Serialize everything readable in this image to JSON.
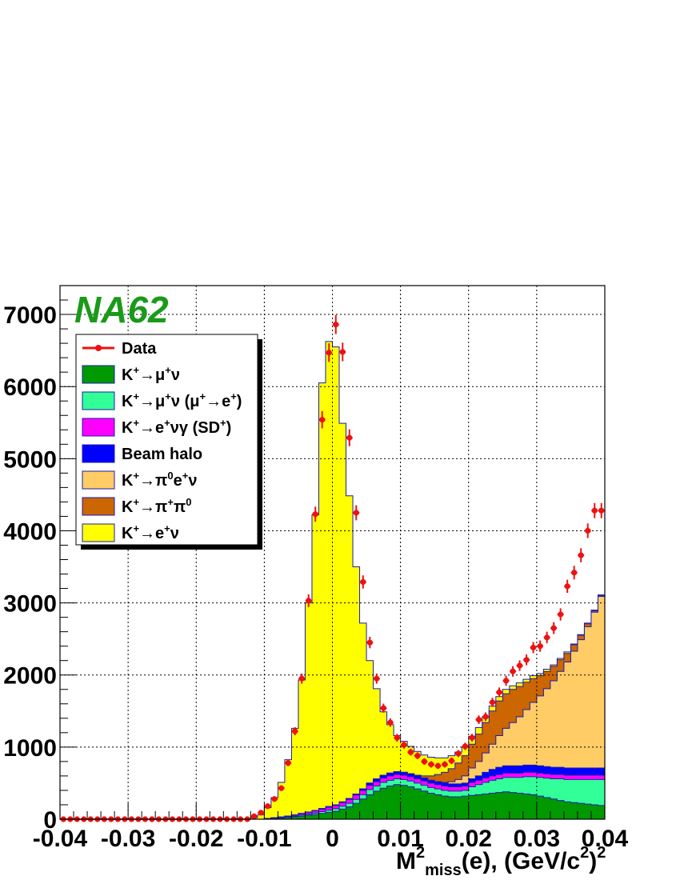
{
  "chart_data": {
    "type": "histogram",
    "watermark": "NA62",
    "xlabel": {
      "main": "M",
      "sup": "2",
      "sub": "miss",
      "rest": "(e), (GeV/c",
      "sup2": "2",
      "close": ")",
      "sup3": "2"
    },
    "xlim": [
      -0.04,
      0.04
    ],
    "ylim": [
      0,
      7400
    ],
    "bin_width": 0.001,
    "x_ticks": [
      -0.04,
      -0.03,
      -0.02,
      -0.01,
      0,
      0.01,
      0.02,
      0.03,
      0.04
    ],
    "x_tick_labels": [
      "-0.04",
      "-0.03",
      "-0.02",
      "-0.01",
      "0",
      "0.01",
      "0.02",
      "0.03",
      "0.04"
    ],
    "y_ticks": [
      0,
      1000,
      2000,
      3000,
      4000,
      5000,
      6000,
      7000
    ],
    "y_tick_labels": [
      "0",
      "1000",
      "2000",
      "3000",
      "4000",
      "5000",
      "6000",
      "7000"
    ],
    "grid": true,
    "legend_position": "top-left",
    "colors": {
      "data": "#ee1111",
      "kmunu": "#009900",
      "kmunu_mue": "#33ff99",
      "kenug": "#ff00ff",
      "halo": "#0000ff",
      "ke3": "#ffcc66",
      "k2pi": "#cc6600",
      "ke2": "#ffff00",
      "outline": "#1b1bb0"
    },
    "legend": [
      {
        "key": "data",
        "type": "marker",
        "parts": [
          {
            "t": "Data"
          }
        ]
      },
      {
        "key": "kmunu",
        "type": "box",
        "parts": [
          {
            "t": "K"
          },
          {
            "t": "+",
            "s": "sup"
          },
          {
            "t": "→μ"
          },
          {
            "t": "+",
            "s": "sup"
          },
          {
            "t": "ν"
          }
        ]
      },
      {
        "key": "kmunu_mue",
        "type": "box",
        "parts": [
          {
            "t": "K"
          },
          {
            "t": "+",
            "s": "sup"
          },
          {
            "t": "→μ"
          },
          {
            "t": "+",
            "s": "sup"
          },
          {
            "t": "ν (μ"
          },
          {
            "t": "+",
            "s": "sup"
          },
          {
            "t": "→e"
          },
          {
            "t": "+",
            "s": "sup"
          },
          {
            "t": ")"
          }
        ]
      },
      {
        "key": "kenug",
        "type": "box",
        "parts": [
          {
            "t": "K"
          },
          {
            "t": "+",
            "s": "sup"
          },
          {
            "t": "→e"
          },
          {
            "t": "+",
            "s": "sup"
          },
          {
            "t": "νγ (SD"
          },
          {
            "t": "+",
            "s": "sup"
          },
          {
            "t": ")"
          }
        ]
      },
      {
        "key": "halo",
        "type": "box",
        "parts": [
          {
            "t": "Beam halo"
          }
        ]
      },
      {
        "key": "ke3",
        "type": "box",
        "parts": [
          {
            "t": "K"
          },
          {
            "t": "+",
            "s": "sup"
          },
          {
            "t": "→π"
          },
          {
            "t": "0",
            "s": "sup"
          },
          {
            "t": "e"
          },
          {
            "t": "+",
            "s": "sup"
          },
          {
            "t": "ν"
          }
        ]
      },
      {
        "key": "k2pi",
        "type": "box",
        "parts": [
          {
            "t": "K"
          },
          {
            "t": "+",
            "s": "sup"
          },
          {
            "t": "→π"
          },
          {
            "t": "+",
            "s": "sup"
          },
          {
            "t": "π"
          },
          {
            "t": "0",
            "s": "sup"
          }
        ]
      },
      {
        "key": "ke2",
        "type": "box",
        "parts": [
          {
            "t": "K"
          },
          {
            "t": "+",
            "s": "sup"
          },
          {
            "t": "→e"
          },
          {
            "t": "+",
            "s": "sup"
          },
          {
            "t": "ν"
          }
        ]
      }
    ],
    "stack_order": [
      "kmunu",
      "kmunu_mue",
      "kenug",
      "halo",
      "ke3",
      "k2pi",
      "ke2"
    ],
    "bin_centers": [
      -0.0395,
      -0.0385,
      -0.0375,
      -0.0365,
      -0.0355,
      -0.0345,
      -0.0335,
      -0.0325,
      -0.0315,
      -0.0305,
      -0.0295,
      -0.0285,
      -0.0275,
      -0.0265,
      -0.0255,
      -0.0245,
      -0.0235,
      -0.0225,
      -0.0215,
      -0.0205,
      -0.0195,
      -0.0185,
      -0.0175,
      -0.0165,
      -0.0155,
      -0.0145,
      -0.0135,
      -0.0125,
      -0.0115,
      -0.0105,
      -0.0095,
      -0.0085,
      -0.0075,
      -0.0065,
      -0.0055,
      -0.0045,
      -0.0035,
      -0.0025,
      -0.0015,
      -0.0005,
      0.0005,
      0.0015,
      0.0025,
      0.0035,
      0.0045,
      0.0055,
      0.0065,
      0.0075,
      0.0085,
      0.0095,
      0.0105,
      0.0115,
      0.0125,
      0.0135,
      0.0145,
      0.0155,
      0.0165,
      0.0175,
      0.0185,
      0.0195,
      0.0205,
      0.0215,
      0.0225,
      0.0235,
      0.0245,
      0.0255,
      0.0265,
      0.0275,
      0.0285,
      0.0295,
      0.0305,
      0.0315,
      0.0325,
      0.0335,
      0.0345,
      0.0355,
      0.0365,
      0.0375,
      0.0385,
      0.0395
    ],
    "components": {
      "kmunu": [
        0,
        0,
        0,
        0,
        0,
        0,
        0,
        0,
        0,
        0,
        0,
        0,
        0,
        0,
        0,
        0,
        0,
        0,
        0,
        0,
        0,
        0,
        0,
        0,
        0,
        0,
        0,
        0,
        0,
        0,
        5,
        10,
        15,
        25,
        35,
        45,
        55,
        65,
        80,
        95,
        110,
        140,
        170,
        220,
        280,
        340,
        390,
        430,
        460,
        480,
        470,
        450,
        420,
        390,
        360,
        340,
        320,
        310,
        310,
        320,
        330,
        340,
        350,
        360,
        370,
        380,
        370,
        360,
        350,
        340,
        320,
        300,
        280,
        260,
        240,
        230,
        220,
        210,
        200,
        190
      ],
      "kmunu_mue": [
        0,
        0,
        0,
        0,
        0,
        0,
        0,
        0,
        0,
        0,
        0,
        0,
        0,
        0,
        0,
        0,
        0,
        0,
        0,
        0,
        0,
        0,
        0,
        0,
        0,
        0,
        0,
        0,
        0,
        0,
        0,
        5,
        5,
        10,
        10,
        15,
        15,
        20,
        25,
        30,
        35,
        40,
        50,
        55,
        60,
        70,
        70,
        80,
        80,
        80,
        80,
        80,
        80,
        80,
        80,
        80,
        80,
        80,
        80,
        80,
        120,
        140,
        160,
        180,
        190,
        200,
        210,
        220,
        240,
        250,
        260,
        270,
        280,
        300,
        310,
        320,
        330,
        340,
        350,
        360
      ],
      "kenug": [
        0,
        0,
        0,
        0,
        0,
        0,
        0,
        0,
        0,
        0,
        0,
        0,
        0,
        0,
        0,
        0,
        0,
        0,
        0,
        0,
        0,
        0,
        0,
        0,
        0,
        0,
        0,
        0,
        0,
        0,
        5,
        5,
        10,
        10,
        15,
        20,
        25,
        30,
        35,
        40,
        45,
        50,
        55,
        60,
        60,
        60,
        60,
        60,
        60,
        60,
        60,
        60,
        60,
        60,
        60,
        60,
        60,
        60,
        60,
        60,
        60,
        60,
        60,
        60,
        60,
        60,
        60,
        60,
        60,
        60,
        60,
        60,
        60,
        60,
        60,
        60,
        60,
        60,
        60,
        60
      ],
      "halo": [
        0,
        0,
        0,
        0,
        0,
        0,
        0,
        0,
        0,
        0,
        0,
        0,
        0,
        0,
        0,
        0,
        0,
        0,
        0,
        0,
        0,
        0,
        0,
        0,
        0,
        0,
        0,
        0,
        0,
        0,
        0,
        0,
        0,
        0,
        0,
        0,
        5,
        5,
        10,
        10,
        10,
        10,
        10,
        15,
        20,
        30,
        40,
        40,
        40,
        40,
        40,
        40,
        40,
        40,
        40,
        40,
        40,
        40,
        40,
        40,
        50,
        60,
        80,
        90,
        100,
        100,
        100,
        100,
        100,
        100,
        100,
        100,
        100,
        100,
        100,
        100,
        100,
        100,
        100,
        100
      ],
      "ke3": [
        0,
        0,
        0,
        0,
        0,
        0,
        0,
        0,
        0,
        0,
        0,
        0,
        0,
        0,
        0,
        0,
        0,
        0,
        0,
        0,
        0,
        0,
        0,
        0,
        0,
        0,
        0,
        0,
        0,
        0,
        0,
        0,
        0,
        0,
        0,
        0,
        0,
        0,
        0,
        0,
        0,
        0,
        0,
        0,
        0,
        0,
        0,
        0,
        0,
        0,
        0,
        0,
        0,
        0,
        0,
        0,
        10,
        30,
        60,
        100,
        150,
        200,
        270,
        350,
        440,
        520,
        600,
        680,
        770,
        870,
        970,
        1080,
        1200,
        1330,
        1470,
        1620,
        1780,
        1960,
        2160,
        2380,
        2600,
        2840,
        3100,
        3380
      ],
      "k2pi": [
        0,
        0,
        0,
        0,
        0,
        0,
        0,
        0,
        0,
        0,
        0,
        0,
        0,
        0,
        0,
        0,
        0,
        0,
        0,
        0,
        0,
        0,
        0,
        0,
        0,
        0,
        0,
        0,
        0,
        0,
        0,
        0,
        0,
        0,
        0,
        0,
        0,
        0,
        0,
        0,
        0,
        0,
        0,
        0,
        0,
        0,
        0,
        0,
        0,
        0,
        0,
        0,
        10,
        30,
        60,
        100,
        140,
        180,
        230,
        280,
        330,
        380,
        420,
        460,
        480,
        480,
        460,
        420,
        380,
        330,
        280,
        240,
        200,
        160,
        120,
        90,
        60,
        40,
        20,
        10
      ],
      "ke2": [
        0,
        0,
        0,
        0,
        0,
        0,
        0,
        0,
        0,
        0,
        0,
        0,
        0,
        0,
        0,
        0,
        0,
        0,
        0,
        0,
        0,
        0,
        0,
        0,
        0,
        0,
        0,
        0,
        20,
        60,
        150,
        280,
        480,
        780,
        1200,
        1850,
        2900,
        4100,
        5900,
        6450,
        6350,
        5250,
        4200,
        3150,
        2300,
        1700,
        1250,
        880,
        670,
        500,
        430,
        380,
        330,
        290,
        260,
        230,
        200,
        180,
        150,
        120,
        110,
        90,
        80,
        70,
        60,
        60,
        50,
        50,
        40,
        40,
        30,
        30,
        20,
        20,
        20,
        10,
        10,
        10,
        10,
        10
      ]
    },
    "data_values": [
      0,
      0,
      0,
      0,
      0,
      0,
      0,
      0,
      0,
      0,
      0,
      0,
      0,
      0,
      0,
      0,
      0,
      0,
      0,
      0,
      0,
      0,
      0,
      0,
      0,
      0,
      0,
      0,
      40,
      90,
      180,
      280,
      430,
      780,
      1220,
      1950,
      3030,
      4230,
      5540,
      6470,
      6860,
      6480,
      5290,
      4250,
      3290,
      2450,
      1950,
      1540,
      1340,
      1130,
      1030,
      930,
      880,
      800,
      760,
      740,
      760,
      810,
      910,
      1010,
      1130,
      1380,
      1420,
      1620,
      1760,
      1920,
      2050,
      2130,
      2210,
      2380,
      2400,
      2520,
      2650,
      2840,
      3230,
      3420,
      3660,
      4000,
      4280,
      4280
    ]
  }
}
